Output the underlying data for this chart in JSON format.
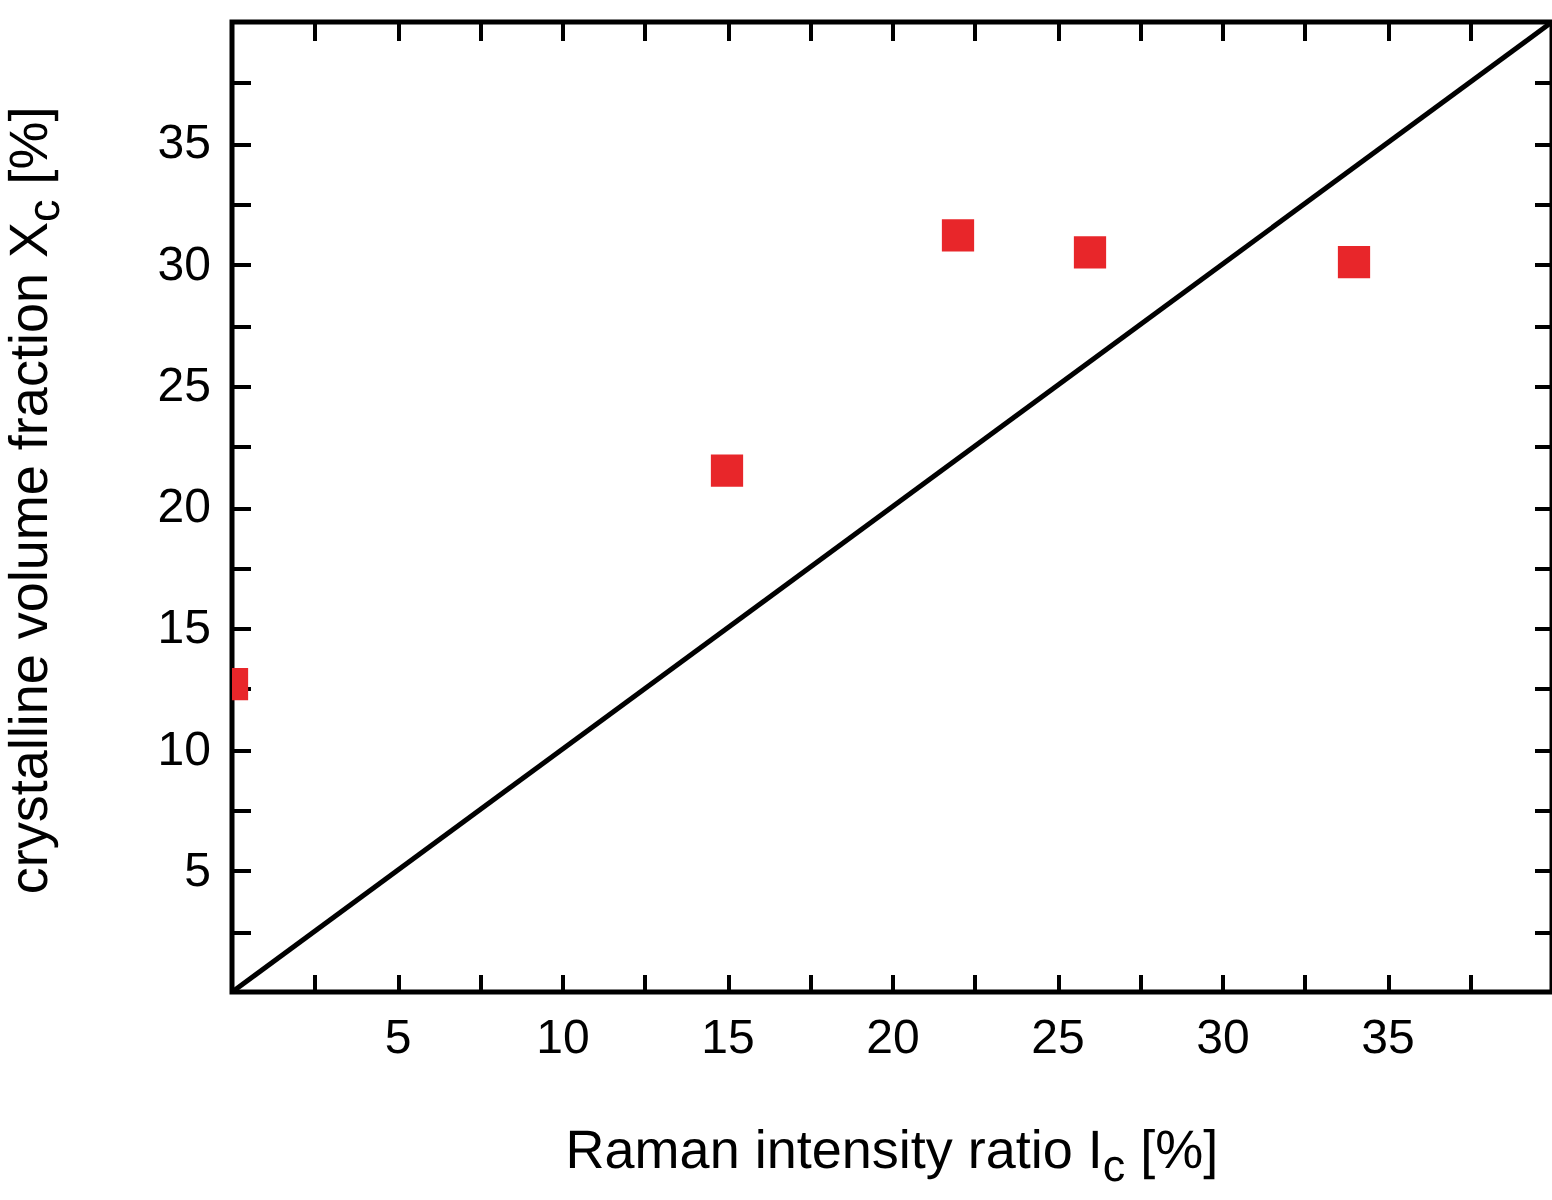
{
  "chart_data": {
    "type": "scatter",
    "xlabel": "Raman intensity ratio I$_{c}$ [%]",
    "ylabel": "crystalline volume fraction X$_{c}$ [%]",
    "xlim": [
      0,
      40
    ],
    "ylim": [
      0,
      40
    ],
    "xticks": [
      {
        "value": 2.5,
        "label": null
      },
      5,
      {
        "value": 7.5,
        "label": null
      },
      10,
      {
        "value": 12.5,
        "label": null
      },
      15,
      {
        "value": 17.5,
        "label": null
      },
      20,
      {
        "value": 22.5,
        "label": null
      },
      25,
      {
        "value": 27.5,
        "label": null
      },
      30,
      {
        "value": 32.5,
        "label": null
      },
      35,
      {
        "value": 37.5,
        "label": null
      }
    ],
    "yticks": [
      {
        "value": 2.5,
        "label": null
      },
      5,
      {
        "value": 7.5,
        "label": null
      },
      10,
      {
        "value": 12.5,
        "label": null
      },
      15,
      {
        "value": 17.5,
        "label": null
      },
      20,
      {
        "value": 22.5,
        "label": null
      },
      25,
      {
        "value": 27.5,
        "label": null
      },
      30,
      {
        "value": 32.5,
        "label": null
      },
      35,
      {
        "value": 37.5,
        "label": null
      }
    ],
    "grid": false,
    "series": [
      {
        "type": "line",
        "color": "#000000",
        "line_style": "solid",
        "x": [
          0,
          40
        ],
        "values": [
          0,
          40
        ]
      },
      {
        "color": "#e8262a",
        "marker": "square",
        "x": [
          0,
          15,
          22,
          26,
          34
        ],
        "values": [
          12.7,
          21.5,
          31.2,
          30.5,
          30.1
        ]
      }
    ]
  }
}
